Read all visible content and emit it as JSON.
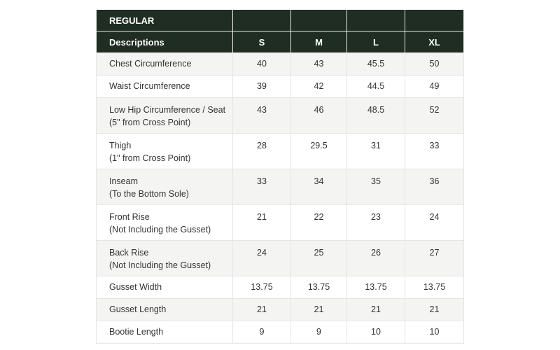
{
  "table": {
    "section_label": "REGULAR",
    "description_header": "Descriptions",
    "sizes": [
      "S",
      "M",
      "L",
      "XL"
    ],
    "rows": [
      {
        "label": "Chest Circumference",
        "sub": "",
        "values": [
          "40",
          "43",
          "45.5",
          "50"
        ]
      },
      {
        "label": "Waist Circumference",
        "sub": "",
        "values": [
          "39",
          "42",
          "44.5",
          "49"
        ]
      },
      {
        "label": "Low Hip Circumference / Seat",
        "sub": "(5\" from Cross Point)",
        "values": [
          "43",
          "46",
          "48.5",
          "52"
        ]
      },
      {
        "label": "Thigh",
        "sub": "(1\" from Cross Point)",
        "values": [
          "28",
          "29.5",
          "31",
          "33"
        ]
      },
      {
        "label": "Inseam",
        "sub": "(To the Bottom Sole)",
        "values": [
          "33",
          "34",
          "35",
          "36"
        ]
      },
      {
        "label": "Front Rise",
        "sub": "(Not Including the Gusset)",
        "values": [
          "21",
          "22",
          "23",
          "24"
        ]
      },
      {
        "label": "Back Rise",
        "sub": "(Not Including the Gusset)",
        "values": [
          "24",
          "25",
          "26",
          "27"
        ]
      },
      {
        "label": "Gusset Width",
        "sub": "",
        "values": [
          "13.75",
          "13.75",
          "13.75",
          "13.75"
        ]
      },
      {
        "label": "Gusset Length",
        "sub": "",
        "values": [
          "21",
          "21",
          "21",
          "21"
        ]
      },
      {
        "label": "Bootie Length",
        "sub": "",
        "values": [
          "9",
          "9",
          "10",
          "10"
        ]
      }
    ]
  },
  "colors": {
    "header_bg": "#1f2d22",
    "header_text": "#ffffff",
    "row_alt_bg": "#f4f4f2",
    "text": "#333333"
  }
}
